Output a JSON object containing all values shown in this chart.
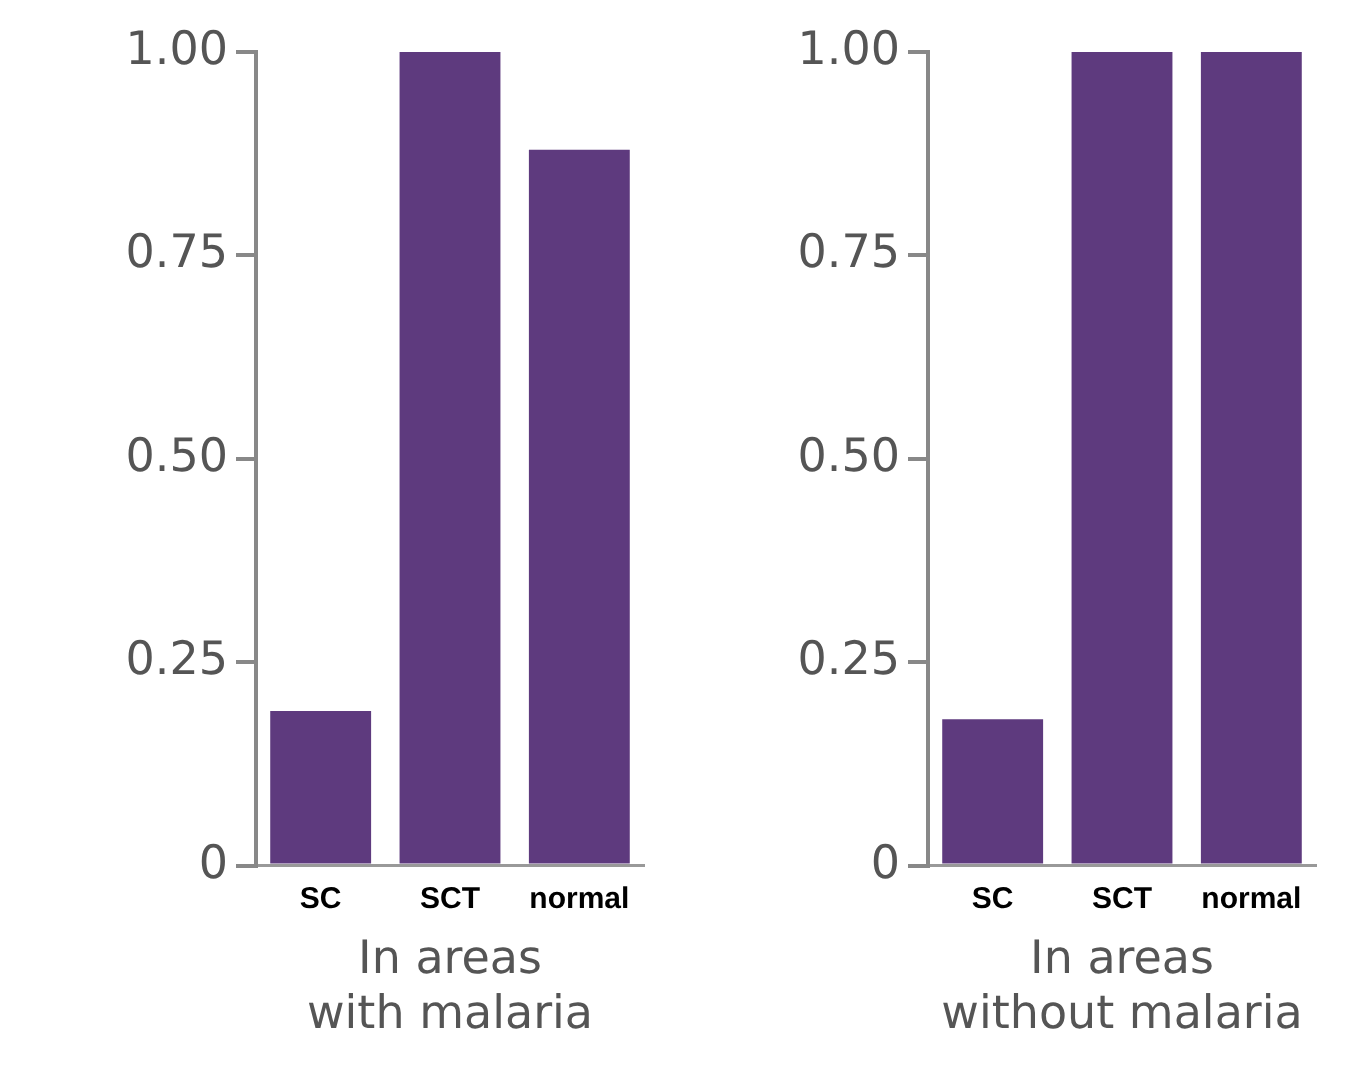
{
  "chart_data": [
    {
      "type": "bar",
      "xlabel": "In areas\nwith malaria",
      "categories": [
        "SC",
        "SCT",
        "normal"
      ],
      "values": [
        0.19,
        1.0,
        0.88
      ],
      "color": "#5e3a7e",
      "ylim": [
        0,
        1.0
      ],
      "yticks": [
        0,
        {
          "value": 0.25,
          "label": "0.25"
        },
        {
          "value": 0.5,
          "label": "0.50"
        },
        {
          "value": 0.75,
          "label": "0.75"
        },
        {
          "value": 1,
          "label": "1.00"
        }
      ],
      "grid": false
    },
    {
      "type": "bar",
      "xlabel": "In areas\nwithout malaria",
      "categories": [
        "SC",
        "SCT",
        "normal"
      ],
      "values": [
        0.18,
        1.0,
        1.0
      ],
      "color": "#5e3a7e",
      "ylim": [
        0,
        1.0
      ],
      "yticks": [
        0,
        {
          "value": 0.25,
          "label": "0.25"
        },
        {
          "value": 0.5,
          "label": "0.50"
        },
        {
          "value": 0.75,
          "label": "0.75"
        },
        {
          "value": 1,
          "label": "1.00"
        }
      ],
      "grid": false
    }
  ]
}
